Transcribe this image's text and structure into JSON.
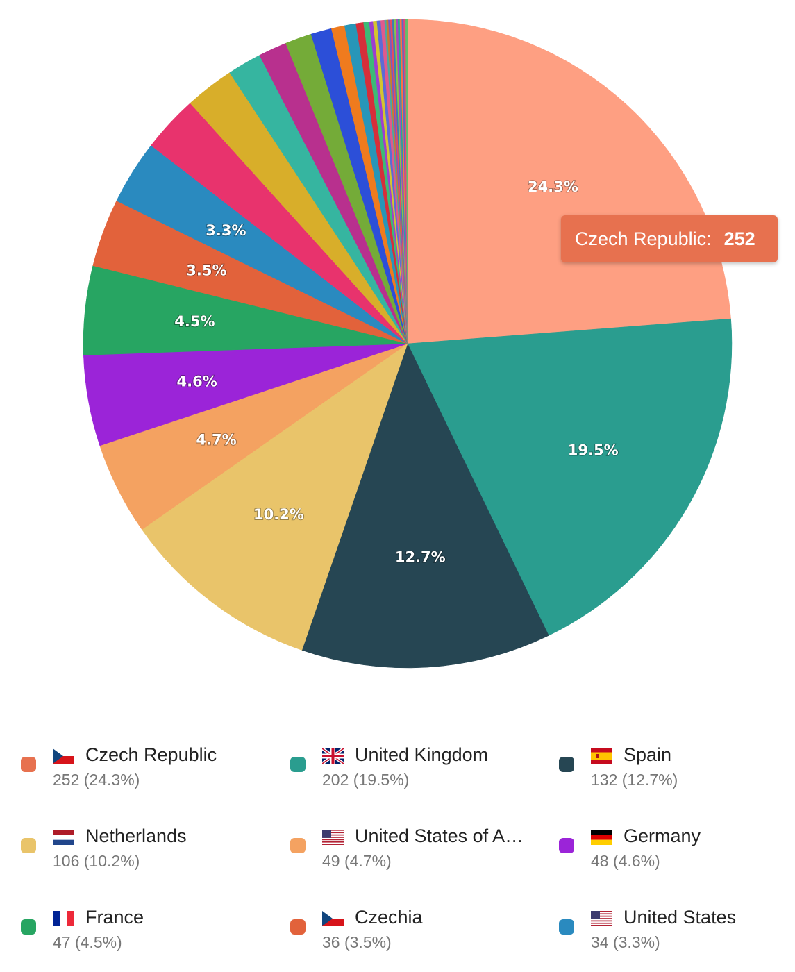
{
  "chart_data": {
    "type": "pie",
    "slices": [
      {
        "name": "Czech Republic",
        "value": 252,
        "percent": 24.3,
        "color": "#fe9f82",
        "label": "24.3%"
      },
      {
        "name": "United Kingdom",
        "value": 202,
        "percent": 19.5,
        "color": "#2a9d8f",
        "label": "19.5%"
      },
      {
        "name": "Spain",
        "value": 132,
        "percent": 12.7,
        "color": "#264653",
        "label": "12.7%"
      },
      {
        "name": "Netherlands",
        "value": 106,
        "percent": 10.2,
        "color": "#e9c46a",
        "label": "10.2%"
      },
      {
        "name": "United States of America",
        "value": 49,
        "percent": 4.7,
        "color": "#f4a261",
        "label": "4.7%"
      },
      {
        "name": "Germany",
        "value": 48,
        "percent": 4.6,
        "color": "#9b24d8",
        "label": "4.6%"
      },
      {
        "name": "France",
        "value": 47,
        "percent": 4.5,
        "color": "#27a562",
        "label": "4.5%"
      },
      {
        "name": "Czechia",
        "value": 36,
        "percent": 3.5,
        "color": "#e2623b",
        "label": "3.5%"
      },
      {
        "name": "United States",
        "value": 34,
        "percent": 3.3,
        "color": "#2a8abf",
        "label": "3.3%"
      },
      {
        "value": 30,
        "color": "#e8336d"
      },
      {
        "value": 26,
        "color": "#d8ae2a"
      },
      {
        "value": 18,
        "color": "#36b5a0"
      },
      {
        "value": 15,
        "color": "#b8308e"
      },
      {
        "value": 14,
        "color": "#74ab38"
      },
      {
        "value": 11,
        "color": "#2c4fd8"
      },
      {
        "value": 7,
        "color": "#ef7b1e"
      },
      {
        "value": 6,
        "color": "#2896b8"
      },
      {
        "value": 4,
        "color": "#d62e3a"
      },
      {
        "value": 3,
        "color": "#3dba77"
      },
      {
        "value": 2,
        "color": "#9d3fd0"
      },
      {
        "value": 2,
        "color": "#d4c52e"
      },
      {
        "value": 2,
        "color": "#5c6bd6"
      },
      {
        "value": 2,
        "color": "#e05a8c"
      },
      {
        "value": 1,
        "color": "#4aa8a0"
      },
      {
        "value": 1,
        "color": "#c97b2e"
      },
      {
        "value": 1,
        "color": "#7e57c2"
      },
      {
        "value": 1,
        "color": "#e84a5f"
      },
      {
        "value": 1,
        "color": "#3e7cb1"
      },
      {
        "value": 1,
        "color": "#8bc34a"
      },
      {
        "value": 1,
        "color": "#ab47bc"
      },
      {
        "value": 1,
        "color": "#26a69a"
      },
      {
        "value": 1,
        "color": "#ff7043"
      },
      {
        "value": 1,
        "color": "#5c6bc0"
      },
      {
        "value": 1,
        "color": "#ec407a"
      },
      {
        "value": 1,
        "color": "#66bb6a"
      }
    ],
    "tooltip": {
      "name": "Czech Republic:",
      "value": "252"
    }
  },
  "legend": [
    {
      "name": "Czech Republic",
      "sub": "252 (24.3%)",
      "color": "#e7714f",
      "flag": "cz"
    },
    {
      "name": "United Kingdom",
      "sub": "202 (19.5%)",
      "color": "#2a9d8f",
      "flag": "gb"
    },
    {
      "name": "Spain",
      "sub": "132 (12.7%)",
      "color": "#264653",
      "flag": "es"
    },
    {
      "name": "Netherlands",
      "sub": "106 (10.2%)",
      "color": "#e9c46a",
      "flag": "nl"
    },
    {
      "name": "United States of A…",
      "sub": "49 (4.7%)",
      "color": "#f4a261",
      "flag": "us"
    },
    {
      "name": "Germany",
      "sub": "48 (4.6%)",
      "color": "#9b24d8",
      "flag": "de"
    },
    {
      "name": "France",
      "sub": "47 (4.5%)",
      "color": "#27a562",
      "flag": "fr"
    },
    {
      "name": "Czechia",
      "sub": "36 (3.5%)",
      "color": "#e2623b",
      "flag": "cz"
    },
    {
      "name": "United States",
      "sub": "34 (3.3%)",
      "color": "#2a8abf",
      "flag": "us"
    }
  ]
}
